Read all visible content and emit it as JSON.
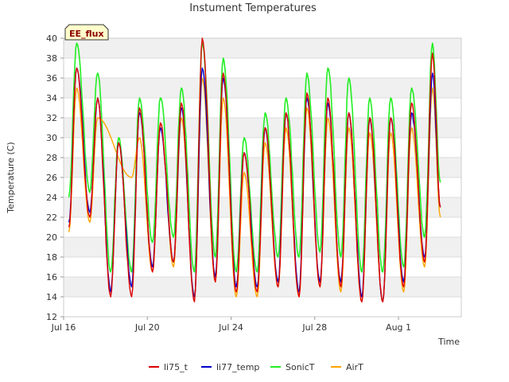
{
  "chart_data": {
    "type": "line",
    "title": "Instument Temperatures",
    "xlabel": "Time",
    "ylabel": "Temperature (C)",
    "badge": "EE_flux",
    "ylim": [
      12,
      40
    ],
    "yticks": [
      12,
      14,
      16,
      18,
      20,
      22,
      24,
      26,
      28,
      30,
      32,
      34,
      36,
      38,
      40
    ],
    "xlim": [
      "2023-07-16",
      "2023-08-04"
    ],
    "xticks": [
      {
        "value": "2023-07-16",
        "label": "Jul 16"
      },
      {
        "value": "2023-07-20",
        "label": "Jul 20"
      },
      {
        "value": "2023-07-24",
        "label": "Jul 24"
      },
      {
        "value": "2023-07-28",
        "label": "Jul 28"
      },
      {
        "value": "2023-08-01",
        "label": "Aug 1"
      }
    ],
    "grid": "horizontal bands",
    "legend_position": "bottom",
    "days": [
      {
        "date": "2023-07-16",
        "min_time": "2023-07-16 06:00",
        "max_time": "2023-07-16 15:00",
        "li75_t": [
          21.0,
          37.0
        ],
        "li77_temp": [
          21.5,
          37.0
        ],
        "SonicT": [
          24.0,
          39.5
        ],
        "AirT": [
          20.5,
          35.0
        ]
      },
      {
        "date": "2023-07-17",
        "min_time": "2023-07-17 06:00",
        "max_time": "2023-07-17 15:00",
        "li75_t": [
          22.0,
          34.0
        ],
        "li77_temp": [
          22.5,
          34.0
        ],
        "SonicT": [
          24.5,
          36.5
        ],
        "AirT": [
          21.5,
          32.0
        ]
      },
      {
        "date": "2023-07-18",
        "min_time": "2023-07-18 06:00",
        "max_time": "2023-07-18 15:00",
        "li75_t": [
          14.0,
          29.5
        ],
        "li77_temp": [
          14.5,
          29.5
        ],
        "SonicT": [
          16.5,
          30.0
        ],
        "AirT": [
          null,
          null
        ]
      },
      {
        "date": "2023-07-19",
        "min_time": "2023-07-19 06:00",
        "max_time": "2023-07-19 15:00",
        "li75_t": [
          14.0,
          33.0
        ],
        "li77_temp": [
          15.0,
          32.5
        ],
        "SonicT": [
          16.5,
          34.0
        ],
        "AirT": [
          26.0,
          30.0
        ]
      },
      {
        "date": "2023-07-20",
        "min_time": "2023-07-20 06:00",
        "max_time": "2023-07-20 15:00",
        "li75_t": [
          16.5,
          31.5
        ],
        "li77_temp": [
          17.0,
          31.0
        ],
        "SonicT": [
          19.5,
          34.0
        ],
        "AirT": [
          16.5,
          31.5
        ]
      },
      {
        "date": "2023-07-21",
        "min_time": "2023-07-21 06:00",
        "max_time": "2023-07-21 15:00",
        "li75_t": [
          17.5,
          33.5
        ],
        "li77_temp": [
          17.5,
          33.0
        ],
        "SonicT": [
          20.0,
          35.0
        ],
        "AirT": [
          17.0,
          32.0
        ]
      },
      {
        "date": "2023-07-22",
        "min_time": "2023-07-22 06:00",
        "max_time": "2023-07-22 15:00",
        "li75_t": [
          13.5,
          40.0
        ],
        "li77_temp": [
          14.0,
          37.0
        ],
        "SonicT": [
          16.5,
          39.5
        ],
        "AirT": [
          14.0,
          36.0
        ]
      },
      {
        "date": "2023-07-23",
        "min_time": "2023-07-23 06:00",
        "max_time": "2023-07-23 15:00",
        "li75_t": [
          15.5,
          36.5
        ],
        "li77_temp": [
          16.0,
          36.0
        ],
        "SonicT": [
          18.0,
          38.0
        ],
        "AirT": [
          15.5,
          34.0
        ]
      },
      {
        "date": "2023-07-24",
        "min_time": "2023-07-24 06:00",
        "max_time": "2023-07-24 15:00",
        "li75_t": [
          14.5,
          28.5
        ],
        "li77_temp": [
          15.0,
          28.5
        ],
        "SonicT": [
          16.5,
          30.0
        ],
        "AirT": [
          14.0,
          26.5
        ]
      },
      {
        "date": "2023-07-25",
        "min_time": "2023-07-25 06:00",
        "max_time": "2023-07-25 15:00",
        "li75_t": [
          14.5,
          31.0
        ],
        "li77_temp": [
          15.0,
          31.0
        ],
        "SonicT": [
          16.5,
          32.5
        ],
        "AirT": [
          14.0,
          29.5
        ]
      },
      {
        "date": "2023-07-26",
        "min_time": "2023-07-26 06:00",
        "max_time": "2023-07-26 15:00",
        "li75_t": [
          15.0,
          32.5
        ],
        "li77_temp": [
          15.5,
          32.5
        ],
        "SonicT": [
          18.0,
          34.0
        ],
        "AirT": [
          15.0,
          31.0
        ]
      },
      {
        "date": "2023-07-27",
        "min_time": "2023-07-27 06:00",
        "max_time": "2023-07-27 15:00",
        "li75_t": [
          14.0,
          34.5
        ],
        "li77_temp": [
          14.5,
          34.0
        ],
        "SonicT": [
          18.0,
          36.5
        ],
        "AirT": [
          14.0,
          33.0
        ]
      },
      {
        "date": "2023-07-28",
        "min_time": "2023-07-28 06:00",
        "max_time": "2023-07-28 15:00",
        "li75_t": [
          15.0,
          34.0
        ],
        "li77_temp": [
          15.5,
          33.5
        ],
        "SonicT": [
          18.5,
          37.0
        ],
        "AirT": [
          15.0,
          32.0
        ]
      },
      {
        "date": "2023-07-29",
        "min_time": "2023-07-29 06:00",
        "max_time": "2023-07-29 15:00",
        "li75_t": [
          15.0,
          32.5
        ],
        "li77_temp": [
          15.5,
          32.5
        ],
        "SonicT": [
          18.0,
          36.0
        ],
        "AirT": [
          14.5,
          31.0
        ]
      },
      {
        "date": "2023-07-30",
        "min_time": "2023-07-30 06:00",
        "max_time": "2023-07-30 15:00",
        "li75_t": [
          13.5,
          32.0
        ],
        "li77_temp": [
          14.0,
          32.0
        ],
        "SonicT": [
          16.5,
          34.0
        ],
        "AirT": [
          13.5,
          30.5
        ]
      },
      {
        "date": "2023-07-31",
        "min_time": "2023-07-31 06:00",
        "max_time": "2023-07-31 15:00",
        "li75_t": [
          13.5,
          32.0
        ],
        "li77_temp": [
          13.5,
          32.0
        ],
        "SonicT": [
          16.5,
          34.0
        ],
        "AirT": [
          13.5,
          30.5
        ]
      },
      {
        "date": "2023-08-01",
        "min_time": "2023-08-01 06:00",
        "max_time": "2023-08-01 15:00",
        "li75_t": [
          15.0,
          33.5
        ],
        "li77_temp": [
          15.5,
          32.5
        ],
        "SonicT": [
          17.0,
          35.0
        ],
        "AirT": [
          14.5,
          31.0
        ]
      },
      {
        "date": "2023-08-02",
        "min_time": "2023-08-02 06:00",
        "max_time": "2023-08-02 15:00",
        "li75_t": [
          17.5,
          38.5
        ],
        "li77_temp": [
          18.0,
          36.5
        ],
        "SonicT": [
          20.0,
          39.5
        ],
        "AirT": [
          17.0,
          35.0
        ]
      }
    ],
    "end": {
      "time": "2023-08-03 00:00",
      "li75_t": 23.0,
      "li77_temp": 23.0,
      "SonicT": 25.5,
      "AirT": 22.0
    },
    "series": [
      {
        "name": "li75_t",
        "color": "#dd0000"
      },
      {
        "name": "li77_temp",
        "color": "#0000cc"
      },
      {
        "name": "SonicT",
        "color": "#22ee22"
      },
      {
        "name": "AirT",
        "color": "#ffa500"
      }
    ]
  }
}
